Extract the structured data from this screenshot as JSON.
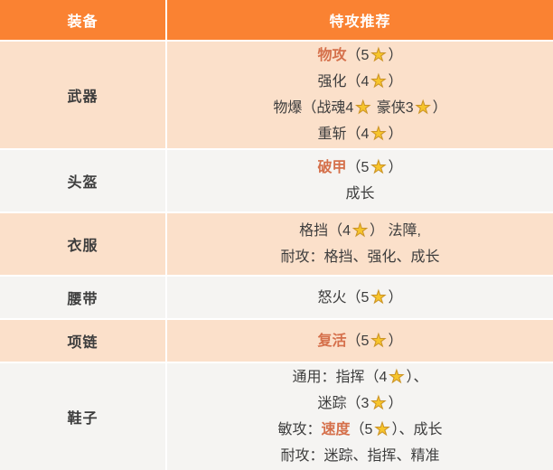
{
  "table": {
    "colors": {
      "header_bg": "#FA8232",
      "row_peach_bg": "#FBE0CA",
      "row_gray_bg": "#F5F4F2",
      "divider": "#FFFFFF",
      "text": "#3D3D3D",
      "highlight": "#D5704B",
      "star_fill": "#F7C52B",
      "star_outline": "#CC9426"
    },
    "header": {
      "equipment": "装备",
      "recommendation": "特攻推荐"
    },
    "rows": [
      {
        "equipment": "武器",
        "shade": "peach",
        "lines": [
          [
            {
              "t": "物攻",
              "c": "hl"
            },
            {
              "t": "（5",
              "c": ""
            },
            {
              "t": "★",
              "c": "star"
            },
            {
              "t": "）",
              "c": ""
            }
          ],
          [
            {
              "t": "强化（4",
              "c": ""
            },
            {
              "t": "★",
              "c": "star"
            },
            {
              "t": "）",
              "c": ""
            }
          ],
          [
            {
              "t": "物爆（战魂4",
              "c": ""
            },
            {
              "t": "★",
              "c": "star"
            },
            {
              "t": " 豪侠3",
              "c": ""
            },
            {
              "t": "★",
              "c": "star"
            },
            {
              "t": "）",
              "c": ""
            }
          ],
          [
            {
              "t": "重斩（4",
              "c": ""
            },
            {
              "t": "★",
              "c": "star"
            },
            {
              "t": "）",
              "c": ""
            }
          ]
        ]
      },
      {
        "equipment": "头盔",
        "shade": "gray",
        "lines": [
          [
            {
              "t": "破甲",
              "c": "hl"
            },
            {
              "t": "（5",
              "c": ""
            },
            {
              "t": "★",
              "c": "star"
            },
            {
              "t": "）",
              "c": ""
            }
          ],
          [
            {
              "t": "成长",
              "c": ""
            }
          ]
        ]
      },
      {
        "equipment": "衣服",
        "shade": "peach",
        "lines": [
          [
            {
              "t": "格挡（4",
              "c": ""
            },
            {
              "t": "★",
              "c": "star"
            },
            {
              "t": "） 法障,",
              "c": ""
            }
          ],
          [
            {
              "t": "耐攻：格挡、强化、成长",
              "c": ""
            }
          ]
        ]
      },
      {
        "equipment": "腰带",
        "shade": "gray",
        "lines": [
          [
            {
              "t": "怒火（5",
              "c": ""
            },
            {
              "t": "★",
              "c": "star"
            },
            {
              "t": "）",
              "c": ""
            }
          ]
        ]
      },
      {
        "equipment": "项链",
        "shade": "peach",
        "lines": [
          [
            {
              "t": "复活",
              "c": "hl"
            },
            {
              "t": "（5",
              "c": ""
            },
            {
              "t": "★",
              "c": "star"
            },
            {
              "t": "）",
              "c": ""
            }
          ]
        ]
      },
      {
        "equipment": "鞋子",
        "shade": "gray",
        "lines": [
          [
            {
              "t": "通用：指挥（4",
              "c": ""
            },
            {
              "t": "★",
              "c": "star"
            },
            {
              "t": "）、",
              "c": ""
            }
          ],
          [
            {
              "t": "迷踪（3",
              "c": ""
            },
            {
              "t": "★",
              "c": "star"
            },
            {
              "t": "）",
              "c": ""
            }
          ],
          [
            {
              "t": "敏攻：",
              "c": ""
            },
            {
              "t": "速度",
              "c": "hl"
            },
            {
              "t": "（5",
              "c": ""
            },
            {
              "t": "★",
              "c": "star"
            },
            {
              "t": "）、成长",
              "c": ""
            }
          ],
          [
            {
              "t": "耐攻：迷踪、指挥、精准",
              "c": ""
            }
          ]
        ]
      }
    ]
  }
}
